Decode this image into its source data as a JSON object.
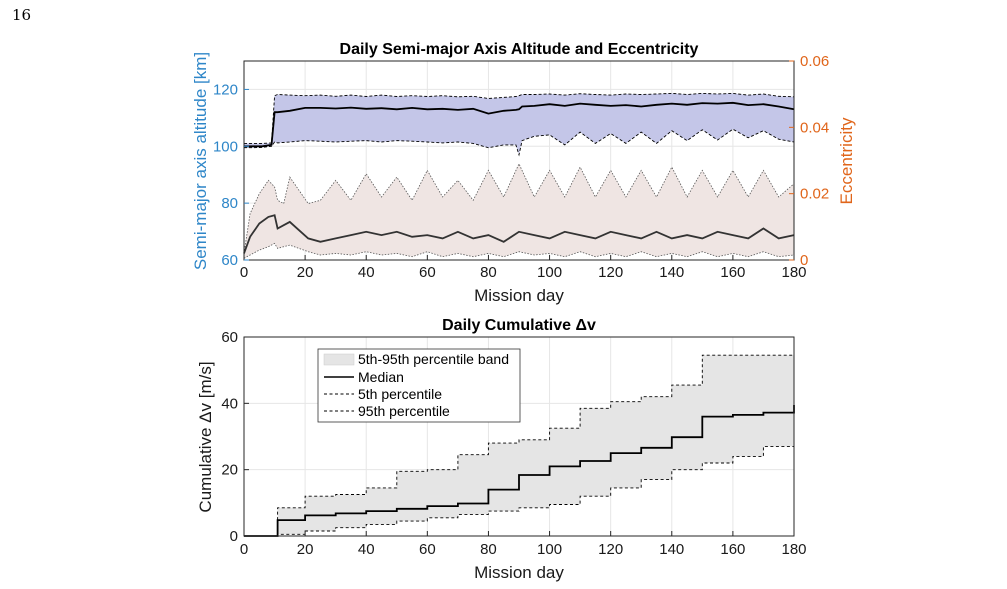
{
  "page_number": "16",
  "colors": {
    "left_axis": "#2e86c8",
    "right_axis": "#e0651a",
    "sma_band": "#c4c6e8",
    "ecc_band": "#efe5e3",
    "dv_band": "#e5e5e5",
    "median": "#000000",
    "ecc_median": "#333333",
    "grid": "#e6e6e6"
  },
  "chart_data": [
    {
      "type": "area",
      "title": "Daily Semi-major Axis Altitude and Eccentricity",
      "xlabel": "Mission day",
      "ylabel": "Semi-major axis altitude [km]",
      "ylabel_right": "Eccentricity",
      "xlim": [
        0,
        180
      ],
      "ylim": [
        60,
        130
      ],
      "ylim_right": [
        0,
        0.06
      ],
      "xticks": [
        "0",
        "20",
        "40",
        "60",
        "80",
        "100",
        "120",
        "140",
        "160",
        "180"
      ],
      "yticks": [
        "60",
        "80",
        "100",
        "120"
      ],
      "yticks_right": [
        "0",
        "0.02",
        "0.04",
        "0.06"
      ],
      "grid": true,
      "series": [
        {
          "axis": "left",
          "x": [
            0,
            3,
            6,
            9,
            10,
            11,
            15,
            20,
            25,
            30,
            35,
            40,
            45,
            50,
            55,
            60,
            65,
            70,
            75,
            80,
            85,
            89,
            90,
            91,
            95,
            100,
            105,
            110,
            115,
            120,
            125,
            130,
            135,
            140,
            145,
            150,
            155,
            160,
            165,
            170,
            175,
            180
          ],
          "median": [
            100,
            100,
            100,
            100.5,
            112,
            112,
            112.5,
            113.5,
            113.5,
            113.3,
            113.6,
            113.2,
            113.4,
            113,
            113.5,
            113,
            113.2,
            112.8,
            113.2,
            111.5,
            112.5,
            112.8,
            113,
            114,
            114.2,
            114.8,
            114.2,
            115,
            114.6,
            114.2,
            114.5,
            114,
            114.6,
            115,
            114.6,
            115.2,
            115,
            115.3,
            114.5,
            114.8,
            114,
            113
          ],
          "p95": [
            101,
            101,
            101,
            101.2,
            117.8,
            118.2,
            118,
            117.8,
            118,
            117.6,
            118,
            117.5,
            118,
            117.5,
            117.8,
            117.5,
            117.8,
            117.4,
            117.6,
            116.8,
            117.2,
            117.5,
            117.8,
            118.2,
            118.2,
            118.4,
            118,
            118.5,
            118.2,
            118,
            118.4,
            118.2,
            118.4,
            118.6,
            118.2,
            118.6,
            118.4,
            118.6,
            118,
            118.4,
            117.6,
            117.4
          ],
          "p5": [
            99.5,
            99.5,
            99.6,
            100,
            101.5,
            101.2,
            101.5,
            102,
            101.8,
            101.5,
            101.8,
            102,
            101.5,
            102,
            101.8,
            101.5,
            101.2,
            101.5,
            101,
            99.5,
            100.5,
            100.5,
            97,
            102,
            103.5,
            104,
            100.5,
            105,
            101,
            104.5,
            101,
            105,
            101,
            105.5,
            102,
            105.8,
            102.2,
            106,
            103,
            105.5,
            102.5,
            101.5
          ]
        },
        {
          "axis": "right",
          "x": [
            0,
            2,
            5,
            8,
            10,
            11,
            13,
            15,
            18,
            21,
            25,
            30,
            35,
            40,
            45,
            50,
            55,
            60,
            65,
            70,
            75,
            80,
            85,
            90,
            95,
            100,
            105,
            110,
            115,
            120,
            125,
            130,
            135,
            140,
            145,
            150,
            155,
            160,
            165,
            170,
            175,
            180
          ],
          "median": [
            0.002,
            0.007,
            0.011,
            0.013,
            0.0135,
            0.0095,
            0.0105,
            0.0115,
            0.009,
            0.0065,
            0.0055,
            0.0065,
            0.0075,
            0.0085,
            0.0075,
            0.0085,
            0.007,
            0.0075,
            0.0065,
            0.0085,
            0.0065,
            0.0075,
            0.0055,
            0.0085,
            0.0075,
            0.0065,
            0.0085,
            0.0075,
            0.0065,
            0.0085,
            0.0075,
            0.0065,
            0.0085,
            0.0065,
            0.0075,
            0.0065,
            0.0085,
            0.0075,
            0.0065,
            0.0095,
            0.0065,
            0.0075
          ],
          "p95": [
            0.002,
            0.014,
            0.02,
            0.024,
            0.022,
            0.018,
            0.017,
            0.025,
            0.021,
            0.017,
            0.018,
            0.024,
            0.018,
            0.026,
            0.019,
            0.025,
            0.018,
            0.027,
            0.019,
            0.024,
            0.018,
            0.027,
            0.019,
            0.029,
            0.019,
            0.027,
            0.019,
            0.028,
            0.019,
            0.027,
            0.019,
            0.027,
            0.019,
            0.028,
            0.019,
            0.027,
            0.019,
            0.027,
            0.019,
            0.027,
            0.019,
            0.023
          ],
          "p5": [
            0.0005,
            0.0015,
            0.003,
            0.004,
            0.005,
            0.0035,
            0.004,
            0.0045,
            0.0035,
            0.0025,
            0.0015,
            0.002,
            0.0015,
            0.0025,
            0.0015,
            0.002,
            0.001,
            0.0025,
            0.001,
            0.002,
            0.001,
            0.002,
            0.001,
            0.0025,
            0.0015,
            0.002,
            0.001,
            0.0025,
            0.001,
            0.002,
            0.001,
            0.0025,
            0.001,
            0.002,
            0.001,
            0.0025,
            0.001,
            0.002,
            0.001,
            0.0025,
            0.001,
            0.0015
          ]
        }
      ]
    },
    {
      "type": "area",
      "title": "Daily  Cumulative  Δv",
      "xlabel": "Mission day",
      "ylabel": "Cumulative  Δv  [m/s]",
      "xlim": [
        0,
        180
      ],
      "ylim": [
        0,
        60
      ],
      "xticks": [
        "0",
        "20",
        "40",
        "60",
        "80",
        "100",
        "120",
        "140",
        "160",
        "180"
      ],
      "yticks": [
        "0",
        "20",
        "40",
        "60"
      ],
      "grid": true,
      "legend": {
        "placement": "top-left",
        "entries": [
          "5th-95th percentile band",
          "Median",
          "5th percentile",
          "95th percentile"
        ]
      },
      "series": [
        {
          "name": "Median",
          "x": [
            0,
            10,
            11,
            20,
            30,
            40,
            50,
            60,
            70,
            80,
            90,
            100,
            110,
            120,
            130,
            140,
            150,
            160,
            170,
            180
          ],
          "values": [
            0,
            0,
            4.8,
            6.2,
            6.8,
            7.5,
            8.2,
            9,
            9.8,
            14,
            18.4,
            21,
            22.6,
            25,
            26.6,
            29.8,
            36,
            36.5,
            37.2,
            39.5
          ]
        },
        {
          "name": "5th percentile",
          "x": [
            0,
            10,
            11,
            20,
            30,
            40,
            50,
            60,
            70,
            80,
            90,
            100,
            110,
            120,
            130,
            140,
            150,
            160,
            170,
            180
          ],
          "values": [
            0,
            0,
            0.5,
            1.5,
            2.5,
            3.5,
            4.5,
            5.5,
            6.5,
            7.5,
            8.5,
            9.5,
            12,
            14.5,
            17,
            20,
            22,
            24,
            27,
            28.3
          ]
        },
        {
          "name": "95th percentile",
          "x": [
            0,
            10,
            11,
            20,
            30,
            40,
            50,
            60,
            70,
            80,
            90,
            100,
            110,
            120,
            130,
            140,
            150,
            160,
            170,
            180
          ],
          "values": [
            0,
            0,
            8.5,
            12,
            12.5,
            14.5,
            19.5,
            20,
            24.5,
            28,
            29,
            32.5,
            38.5,
            40.5,
            42,
            45.5,
            54.5,
            54.5,
            54.5,
            54.5
          ]
        }
      ]
    }
  ]
}
